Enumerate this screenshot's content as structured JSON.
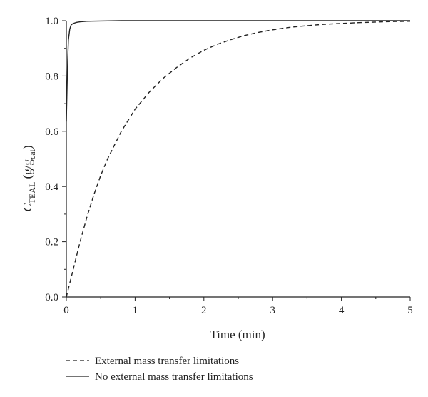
{
  "chart_data": {
    "type": "line",
    "xlabel": "Time (min)",
    "ylabel": {
      "main": "C",
      "sub": "TEAL",
      "unit_open": " (g/g",
      "unit_sub": "cat",
      "unit_close": ")"
    },
    "xlim": [
      0,
      5
    ],
    "ylim": [
      0,
      1
    ],
    "xticks": [
      "0",
      "1",
      "2",
      "3",
      "4",
      "5"
    ],
    "yticks": [
      "0.0",
      "0.2",
      "0.4",
      "0.6",
      "0.8",
      "1.0"
    ],
    "grid": false,
    "legend_position": "bottom",
    "series": [
      {
        "name": "External mass transfer limitations",
        "style": "dashed",
        "color": "#222222",
        "x": [
          0,
          0.05,
          0.1,
          0.2,
          0.3,
          0.4,
          0.5,
          0.6,
          0.8,
          1.0,
          1.2,
          1.4,
          1.6,
          1.8,
          2.0,
          2.2,
          2.4,
          2.6,
          2.8,
          3.0,
          3.25,
          3.5,
          3.75,
          4.0,
          4.25,
          4.5,
          4.75,
          5.0
        ],
        "y": [
          0,
          0.05,
          0.1,
          0.2,
          0.29,
          0.37,
          0.44,
          0.5,
          0.6,
          0.68,
          0.74,
          0.79,
          0.83,
          0.865,
          0.893,
          0.915,
          0.932,
          0.947,
          0.958,
          0.967,
          0.976,
          0.982,
          0.987,
          0.99,
          0.993,
          0.995,
          0.997,
          0.998
        ]
      },
      {
        "name": "No external mass transfer limitations",
        "style": "solid",
        "color": "#222222",
        "x": [
          0,
          0.01,
          0.02,
          0.03,
          0.05,
          0.07,
          0.1,
          0.15,
          0.2,
          0.3,
          0.5,
          0.8,
          1.0,
          2.0,
          3.0,
          4.0,
          5.0
        ],
        "y": [
          0.635,
          0.75,
          0.86,
          0.93,
          0.97,
          0.985,
          0.99,
          0.994,
          0.996,
          0.998,
          0.999,
          1.0,
          1.0,
          1.0,
          1.0,
          1.0,
          1.0
        ]
      }
    ]
  }
}
